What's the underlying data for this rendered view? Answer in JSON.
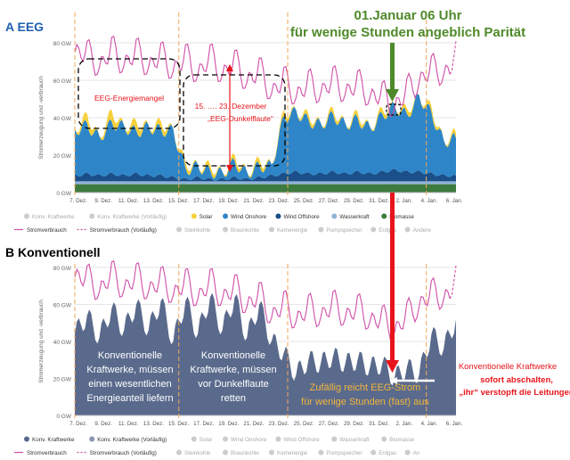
{
  "panel_a": {
    "label": "A  EEG",
    "y_axis_title": "Stromerzeugung und -verbrauch",
    "y_ticks": [
      "80 GW",
      "60 GW",
      "40 GW",
      "20 GW",
      "0 GW"
    ],
    "x_ticks": [
      "7. Dez.",
      "9. Dez.",
      "11. Dez.",
      "13. Dez.",
      "15. Dez.",
      "17. Dez.",
      "19. Dez.",
      "21. Dez.",
      "23. Dez.",
      "25. Dez.",
      "27. Dez.",
      "29. Dez.",
      "31. Dez.",
      "2. Jan.",
      "4. Jan.",
      "6. Jan."
    ],
    "legend_row1": [
      {
        "label": "Konv. Kraftwerke",
        "color": "#cccccc",
        "active": false
      },
      {
        "label": "Konv. Kraftwerke (Vorläufig)",
        "color": "#cccccc",
        "active": false
      },
      {
        "label": "Solar",
        "color": "#f5d03c",
        "active": true
      },
      {
        "label": "Wind Onshore",
        "color": "#2e86c8",
        "active": true
      },
      {
        "label": "Wind Offshore",
        "color": "#1a4f8a",
        "active": true
      },
      {
        "label": "Wasserkraft",
        "color": "#8fb3d9",
        "active": true
      },
      {
        "label": "Biomasse",
        "color": "#3d7a3d",
        "active": true
      }
    ],
    "legend_row2": [
      {
        "label": "Stromverbrauch",
        "kind": "line",
        "active": true
      },
      {
        "label": "Stromverbrauch (Vorläufig)",
        "kind": "dashed",
        "active": true
      },
      {
        "label": "Steinkohle",
        "kind": "dot",
        "active": false
      },
      {
        "label": "Braunkohle",
        "kind": "dot",
        "active": false
      },
      {
        "label": "Kernenergie",
        "kind": "dot",
        "active": false
      },
      {
        "label": "Pumpspeicher",
        "kind": "dot",
        "active": false
      },
      {
        "label": "Erdgas",
        "kind": "dot",
        "active": false
      },
      {
        "label": "Andere",
        "kind": "dot",
        "active": false
      }
    ],
    "annot_mangel": "EEG-Energiemangel",
    "annot_dunkel_1": "15. …. 23.    Dezember",
    "annot_dunkel_2": "„EEG-Dunkelflaute“"
  },
  "headline_1": "01.Januar 06 Uhr",
  "headline_2": "für wenige Stunden angeblich Parität",
  "panel_b": {
    "label": "B  Konventionell",
    "y_axis_title": "Stromerzeugung und -verbrauch",
    "y_ticks": [
      "80 GW",
      "60 GW",
      "40 GW",
      "20 GW",
      "0 GW"
    ],
    "x_ticks": [
      "7. Dez.",
      "9. Dez.",
      "11. Dez.",
      "13. Dez.",
      "15. Dez.",
      "17. Dez.",
      "19. Dez.",
      "21. Dez.",
      "23. Dez.",
      "25. Dez.",
      "27. Dez.",
      "29. Dez.",
      "31. Dez.",
      "2. Jan.",
      "4. Jan.",
      "6. Jan."
    ],
    "legend_row1": [
      {
        "label": "Konv. Kraftwerke",
        "color": "#5a6a8c",
        "active": true
      },
      {
        "label": "Konv. Kraftwerke (Vorläufig)",
        "color": "#8a96b0",
        "active": true
      },
      {
        "label": "Solar",
        "color": "#cccccc",
        "active": false
      },
      {
        "label": "Wind Onshore",
        "color": "#cccccc",
        "active": false
      },
      {
        "label": "Wind Offshore",
        "color": "#cccccc",
        "active": false
      },
      {
        "label": "Wasserkraft",
        "color": "#cccccc",
        "active": false
      },
      {
        "label": "Biomasse",
        "color": "#cccccc",
        "active": false
      }
    ],
    "legend_row2": [
      {
        "label": "Stromverbrauch",
        "kind": "line",
        "active": true
      },
      {
        "label": "Stromverbrauch (Vorläufig)",
        "kind": "dashed",
        "active": true
      },
      {
        "label": "Steinkohle",
        "kind": "dot",
        "active": false
      },
      {
        "label": "Braunkohle",
        "kind": "dot",
        "active": false
      },
      {
        "label": "Kernenergie",
        "kind": "dot",
        "active": false
      },
      {
        "label": "Pumpspeicher",
        "kind": "dot",
        "active": false
      },
      {
        "label": "Erdgas",
        "kind": "dot",
        "active": false
      },
      {
        "label": "An",
        "kind": "dot",
        "active": false
      }
    ],
    "text_1": [
      "Konventionelle",
      "Kraftwerke, müssen",
      "einen wesentlichen",
      "Energieanteil liefern"
    ],
    "text_2": [
      "Konventionelle",
      "Kraftwerke, müssen",
      "vor Dunkelflaute",
      "retten"
    ],
    "text_3": [
      "Zufällig reicht EEG-Strom",
      "für wenige Stunden (fast) aus"
    ],
    "side_1": "Konventionelle  Kraftwerke",
    "side_2": "sofort abschalten,",
    "side_3": "„ihr“ verstopft die Leitungen"
  },
  "colors": {
    "consumption": "#d04fa8",
    "guide": "#f2a65a",
    "red": "#e8141b",
    "green": "#4f8a2a",
    "label_blue": "#1f5fb0",
    "gold": "#f2b53c"
  },
  "chart_data": [
    {
      "type": "area",
      "title": "A  EEG",
      "ylabel": "Stromerzeugung und -verbrauch",
      "ylim": [
        0,
        80
      ],
      "x": [
        6,
        7,
        8,
        9,
        10,
        11,
        12,
        13,
        14,
        15,
        16,
        17,
        18,
        19,
        20,
        21,
        22,
        23,
        24,
        25,
        26,
        27,
        28,
        29,
        30,
        31,
        32,
        33,
        34,
        35,
        36,
        37
      ],
      "x_note_ticks": "7. Dez. … 6. Jan.",
      "series": [
        {
          "name": "Biomasse",
          "values": [
            4.5,
            4.5,
            4.5,
            4.5,
            4.5,
            4.5,
            4.5,
            4.5,
            4.5,
            4.5,
            4.5,
            4.5,
            4.5,
            4.5,
            4.5,
            4.5,
            4.5,
            4.5,
            4.5,
            4.5,
            4.5,
            4.5,
            4.5,
            4.5,
            4.5,
            4.5,
            4.5,
            4.5,
            4.5,
            4.5,
            4.5,
            4.5
          ]
        },
        {
          "name": "Wasserkraft",
          "values": [
            1.5,
            1.5,
            1.5,
            1.5,
            1.5,
            1.5,
            1.5,
            1.5,
            1.5,
            1.5,
            1.5,
            1.5,
            1.5,
            1.5,
            1.5,
            1.5,
            1.5,
            1.5,
            1.5,
            1.5,
            1.5,
            1.5,
            1.5,
            1.5,
            1.5,
            1.5,
            1.5,
            1.5,
            1.5,
            1.5,
            1.5,
            1.5
          ]
        },
        {
          "name": "Wind Offshore",
          "values": [
            3,
            4,
            3,
            4,
            3,
            4,
            3,
            3,
            2,
            1,
            2,
            1,
            1,
            2,
            1,
            2,
            3,
            4,
            5,
            4,
            4,
            5,
            4,
            5,
            4,
            5,
            6,
            5,
            5,
            4,
            3,
            3
          ]
        },
        {
          "name": "Wind Onshore",
          "values": [
            24,
            26,
            20,
            27,
            26,
            22,
            26,
            24,
            25,
            5,
            6,
            4,
            3,
            8,
            3,
            6,
            5,
            30,
            32,
            28,
            26,
            30,
            26,
            28,
            24,
            30,
            34,
            30,
            40,
            32,
            18,
            20
          ]
        },
        {
          "name": "Solar",
          "values": [
            0,
            5,
            0,
            6,
            0,
            5,
            0,
            4,
            0,
            3,
            0,
            3,
            0,
            3,
            0,
            3,
            0,
            3,
            0,
            3,
            0,
            3,
            0,
            3,
            0,
            3,
            0,
            3,
            0,
            3,
            0,
            3
          ]
        },
        {
          "name": "Stromverbrauch",
          "values": [
            72,
            78,
            64,
            80,
            65,
            79,
            64,
            77,
            62,
            76,
            60,
            76,
            60,
            73,
            56,
            69,
            50,
            64,
            48,
            62,
            50,
            64,
            50,
            62,
            48,
            56,
            42,
            58,
            56,
            70,
            60,
            72
          ]
        }
      ]
    },
    {
      "type": "area",
      "title": "B  Konventionell",
      "ylabel": "Stromerzeugung und -verbrauch",
      "ylim": [
        0,
        80
      ],
      "x": [
        6,
        7,
        8,
        9,
        10,
        11,
        12,
        13,
        14,
        15,
        16,
        17,
        18,
        19,
        20,
        21,
        22,
        23,
        24,
        25,
        26,
        27,
        28,
        29,
        30,
        31,
        32,
        33,
        34,
        35,
        36,
        37
      ],
      "series": [
        {
          "name": "Konv. Kraftwerke",
          "values": [
            44,
            54,
            42,
            58,
            46,
            60,
            46,
            62,
            40,
            62,
            44,
            64,
            46,
            64,
            42,
            60,
            40,
            34,
            22,
            30,
            28,
            32,
            28,
            30,
            26,
            28,
            20,
            26,
            22,
            44,
            36,
            52
          ]
        },
        {
          "name": "Stromverbrauch",
          "values": [
            72,
            78,
            64,
            80,
            65,
            79,
            64,
            77,
            62,
            76,
            60,
            76,
            60,
            73,
            56,
            69,
            50,
            64,
            48,
            62,
            50,
            64,
            50,
            62,
            48,
            56,
            42,
            58,
            56,
            70,
            60,
            72
          ]
        }
      ]
    }
  ]
}
